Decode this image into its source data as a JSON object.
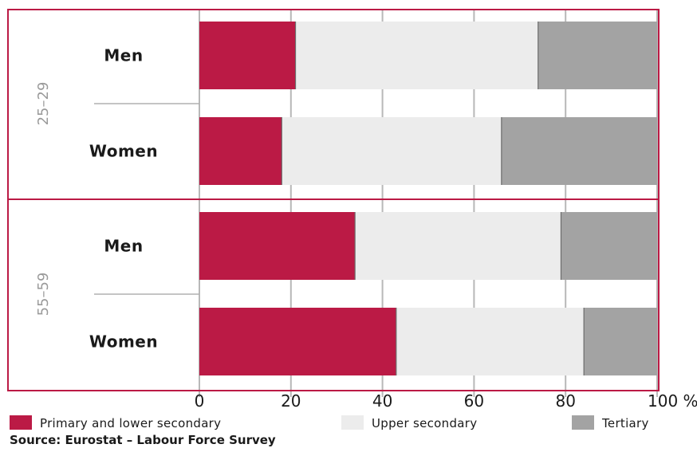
{
  "chart_data": {
    "type": "bar",
    "orientation": "horizontal",
    "stacked": true,
    "groups": [
      {
        "label": "25–29",
        "bars": [
          {
            "label": "Men",
            "values": [
              21,
              53,
              26
            ]
          },
          {
            "label": "Women",
            "values": [
              18,
              48,
              34
            ]
          }
        ]
      },
      {
        "label": "55–59",
        "bars": [
          {
            "label": "Men",
            "values": [
              34,
              45,
              21
            ]
          },
          {
            "label": "Women",
            "values": [
              43,
              41,
              16
            ]
          }
        ]
      }
    ],
    "series": [
      {
        "name": "Primary and lower secondary",
        "color": "#bb1a45"
      },
      {
        "name": "Upper secondary",
        "color": "#ececec"
      },
      {
        "name": "Tertiary",
        "color": "#a3a3a3"
      }
    ],
    "x_ticks": [
      0,
      20,
      40,
      60,
      80,
      100
    ],
    "x_tick_labels": [
      "0",
      "20",
      "40",
      "60",
      "80",
      "100 %"
    ],
    "xlim": [
      0,
      100
    ],
    "grid": true,
    "legend_position": "bottom",
    "source": "Source: Eurostat – Labour Force Survey",
    "frame_color": "#bb1a45",
    "gridline_color": "#b8b8b8"
  }
}
